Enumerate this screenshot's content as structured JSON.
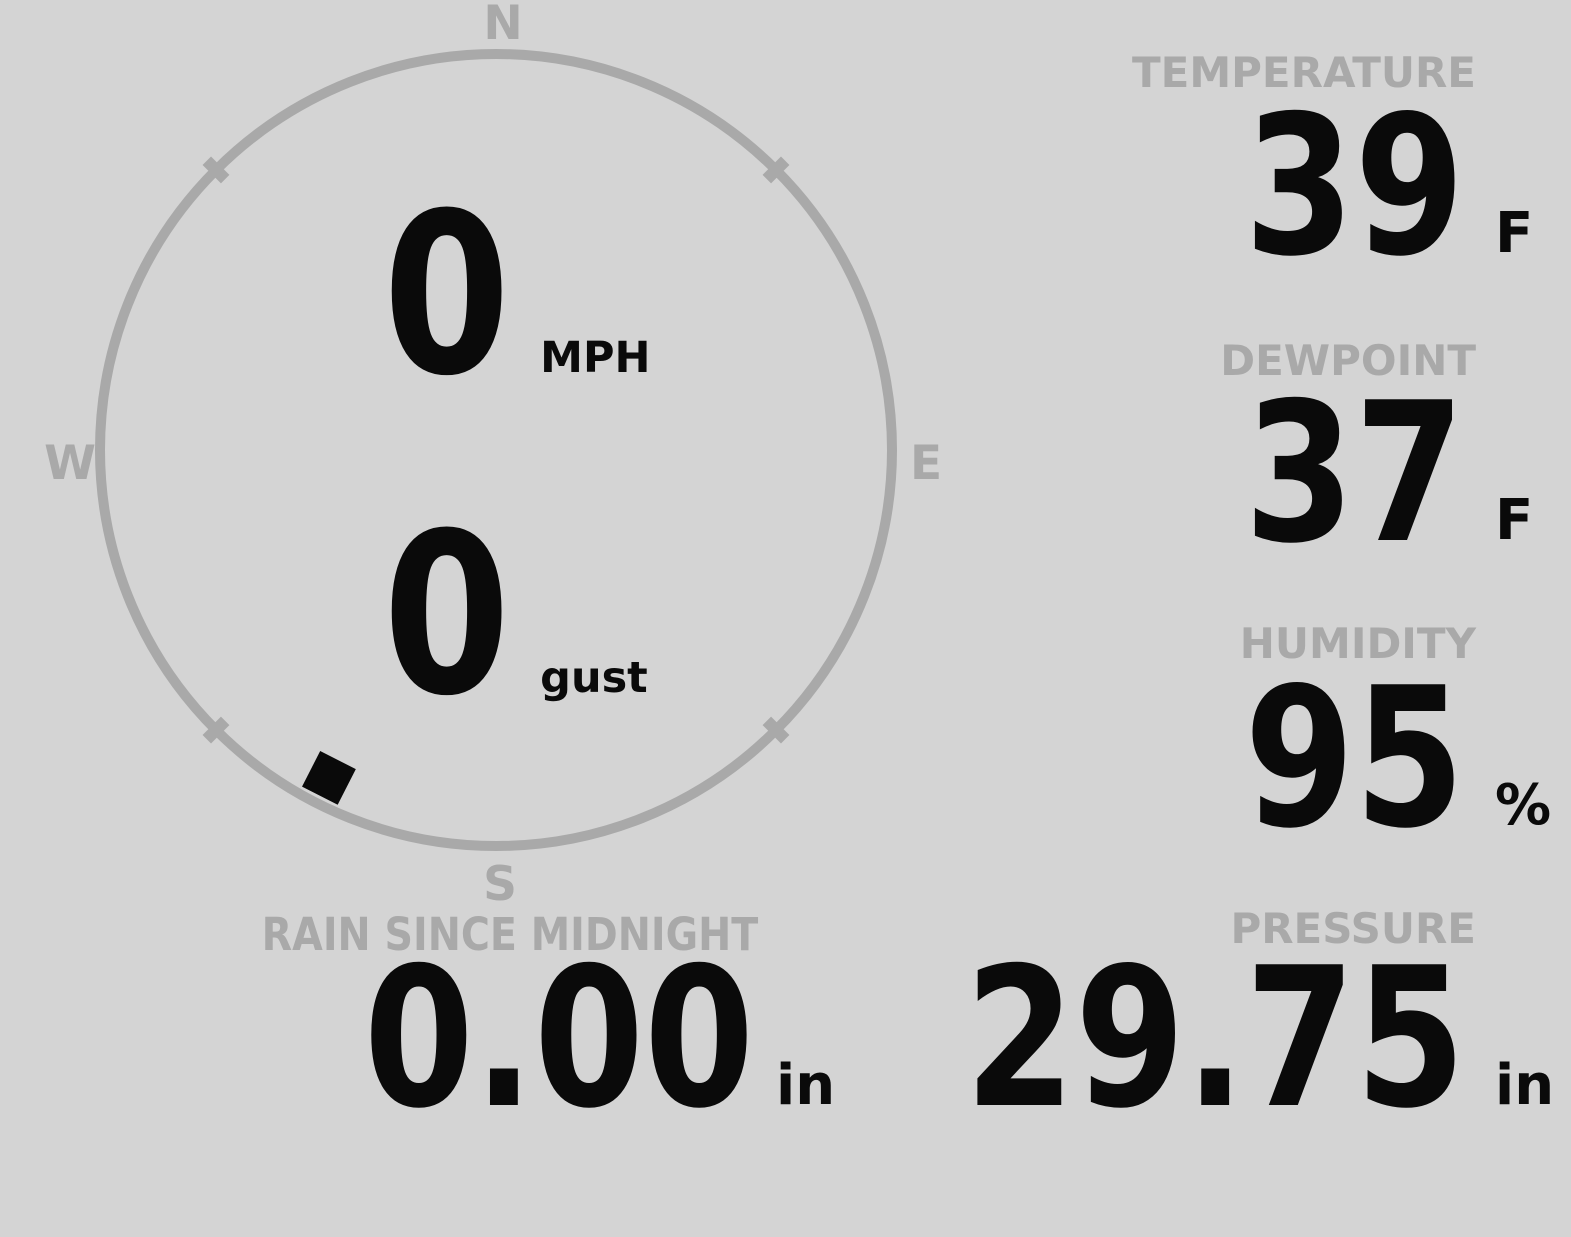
{
  "colors": {
    "background": "#d4d4d4",
    "muted": "#a9a9a9",
    "value_color": "#0a0a0a"
  },
  "compass": {
    "cardinal": {
      "north": "N",
      "east": "E",
      "south": "S",
      "west": "W"
    },
    "wind_speed": {
      "value": "0",
      "unit": "MPH"
    },
    "wind_gust": {
      "value": "0",
      "unit": "gust"
    },
    "direction_degrees": 207
  },
  "metrics": {
    "temperature": {
      "label": "TEMPERATURE",
      "value": "39",
      "unit": "F"
    },
    "dewpoint": {
      "label": "DEWPOINT",
      "value": "37",
      "unit": "F"
    },
    "humidity": {
      "label": "HUMIDITY",
      "value": "95",
      "unit": "%"
    },
    "rain": {
      "label": "RAIN SINCE MIDNIGHT",
      "value": "0.00",
      "unit": "in"
    },
    "pressure": {
      "label": "PRESSURE",
      "value": "29.75",
      "unit": "in"
    }
  }
}
